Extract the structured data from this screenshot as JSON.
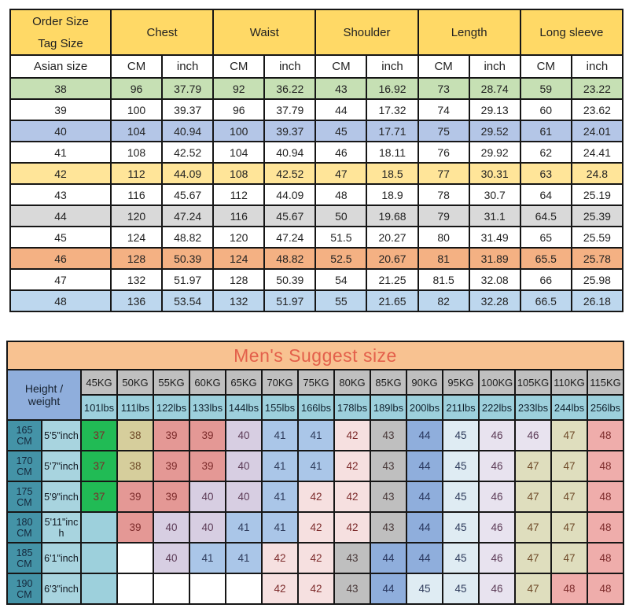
{
  "page": {
    "background": "#FFFFFF"
  },
  "size_table": {
    "corner_line1": "Order Size",
    "corner_line2": "Tag Size",
    "sub_corner": "Asian size",
    "columns": [
      "Chest",
      "Waist",
      "Shoulder",
      "Length",
      "Long sleeve"
    ],
    "sub_headers": [
      "CM",
      "inch"
    ],
    "header_bg": "#FFD966",
    "rows": [
      {
        "size": "38",
        "color": "#C6E0B4",
        "values": [
          "96",
          "37.79",
          "92",
          "36.22",
          "43",
          "16.92",
          "73",
          "28.74",
          "59",
          "23.22"
        ]
      },
      {
        "size": "39",
        "color": "#FFFFFF",
        "values": [
          "100",
          "39.37",
          "96",
          "37.79",
          "44",
          "17.32",
          "74",
          "29.13",
          "60",
          "23.62"
        ]
      },
      {
        "size": "40",
        "color": "#B4C6E7",
        "values": [
          "104",
          "40.94",
          "100",
          "39.37",
          "45",
          "17.71",
          "75",
          "29.52",
          "61",
          "24.01"
        ]
      },
      {
        "size": "41",
        "color": "#FFFFFF",
        "values": [
          "108",
          "42.52",
          "104",
          "40.94",
          "46",
          "18.11",
          "76",
          "29.92",
          "62",
          "24.41"
        ]
      },
      {
        "size": "42",
        "color": "#FFE599",
        "values": [
          "112",
          "44.09",
          "108",
          "42.52",
          "47",
          "18.5",
          "77",
          "30.31",
          "63",
          "24.8"
        ]
      },
      {
        "size": "43",
        "color": "#FFFFFF",
        "values": [
          "116",
          "45.67",
          "112",
          "44.09",
          "48",
          "18.9",
          "78",
          "30.7",
          "64",
          "25.19"
        ]
      },
      {
        "size": "44",
        "color": "#D9D9D9",
        "values": [
          "120",
          "47.24",
          "116",
          "45.67",
          "50",
          "19.68",
          "79",
          "31.1",
          "64.5",
          "25.39"
        ]
      },
      {
        "size": "45",
        "color": "#FFFFFF",
        "values": [
          "124",
          "48.82",
          "120",
          "47.24",
          "51.5",
          "20.27",
          "80",
          "31.49",
          "65",
          "25.59"
        ]
      },
      {
        "size": "46",
        "color": "#F4B183",
        "values": [
          "128",
          "50.39",
          "124",
          "48.82",
          "52.5",
          "20.67",
          "81",
          "31.89",
          "65.5",
          "25.78"
        ]
      },
      {
        "size": "47",
        "color": "#FFFFFF",
        "values": [
          "132",
          "51.97",
          "128",
          "50.39",
          "54",
          "21.25",
          "81.5",
          "32.08",
          "66",
          "25.98"
        ]
      },
      {
        "size": "48",
        "color": "#BDD7EE",
        "values": [
          "136",
          "53.54",
          "132",
          "51.97",
          "55",
          "21.65",
          "82",
          "32.28",
          "66.5",
          "26.18"
        ]
      }
    ]
  },
  "suggest_table": {
    "title": "Men's Suggest size",
    "title_bg": "#F8C291",
    "title_color": "#E3604B",
    "corner_label": "Height / weight",
    "corner_bg": "#8FAEDC",
    "kg_bg": "#BFBFBF",
    "lbs_bg": "#9DD0DC",
    "height_cm_bg": "#4493A7",
    "height_inch_bg": "#A8D4DF",
    "weights": [
      {
        "kg": "45KG",
        "lbs": "101lbs"
      },
      {
        "kg": "50KG",
        "lbs": "111lbs"
      },
      {
        "kg": "55KG",
        "lbs": "122lbs"
      },
      {
        "kg": "60KG",
        "lbs": "133lbs"
      },
      {
        "kg": "65KG",
        "lbs": "144lbs"
      },
      {
        "kg": "70KG",
        "lbs": "155lbs"
      },
      {
        "kg": "75KG",
        "lbs": "166lbs"
      },
      {
        "kg": "80KG",
        "lbs": "178lbs"
      },
      {
        "kg": "85KG",
        "lbs": "189lbs"
      },
      {
        "kg": "90KG",
        "lbs": "200lbs"
      },
      {
        "kg": "95KG",
        "lbs": "211lbs"
      },
      {
        "kg": "100KG",
        "lbs": "222lbs"
      },
      {
        "kg": "105KG",
        "lbs": "233lbs"
      },
      {
        "kg": "110KG",
        "lbs": "244lbs"
      },
      {
        "kg": "115KG",
        "lbs": "256lbs"
      }
    ],
    "rows": [
      {
        "cm": "165 CM",
        "inch": "5'5\"inch",
        "cells": [
          "37",
          "38",
          "39",
          "39",
          "40",
          "41",
          "41",
          "42",
          "43",
          "44",
          "45",
          "46",
          "46",
          "47",
          "48"
        ]
      },
      {
        "cm": "170 CM",
        "inch": "5'7\"inch",
        "cells": [
          "37",
          "38",
          "39",
          "39",
          "40",
          "41",
          "41",
          "42",
          "43",
          "44",
          "45",
          "46",
          "47",
          "47",
          "48"
        ]
      },
      {
        "cm": "175 CM",
        "inch": "5'9\"inch",
        "cells": [
          "37",
          "39",
          "39",
          "40",
          "40",
          "41",
          "42",
          "42",
          "43",
          "44",
          "45",
          "46",
          "47",
          "47",
          "48"
        ]
      },
      {
        "cm": "180 CM",
        "inch": "5'11\"inch",
        "cells": [
          {
            "v": "",
            "bg": "cyan"
          },
          "39",
          "40",
          "40",
          "41",
          "41",
          "42",
          "42",
          "43",
          "44",
          "45",
          "46",
          "47",
          "47",
          "48"
        ]
      },
      {
        "cm": "185 CM",
        "inch": "6'1\"inch",
        "cells": [
          {
            "v": "",
            "bg": "cyan"
          },
          "",
          "40",
          "41",
          "41",
          "42",
          "42",
          "43",
          "44",
          "44",
          "45",
          "46",
          "47",
          "47",
          "48"
        ]
      },
      {
        "cm": "190 CM",
        "inch": "6'3\"inch",
        "cells": [
          {
            "v": "",
            "bg": "cyan"
          },
          "",
          "",
          "",
          "",
          "42",
          "42",
          "43",
          "44",
          "45",
          "45",
          "46",
          "47",
          "48",
          "48"
        ]
      }
    ],
    "value_colors": {
      "37": {
        "bg": "#21BB55",
        "fg": "#7C2B2B"
      },
      "38": {
        "bg": "#D6CE9C",
        "fg": "#6E4A28"
      },
      "39": {
        "bg": "#E49895",
        "fg": "#7C2B2B"
      },
      "40": {
        "bg": "#D7CEE2",
        "fg": "#5B3A55"
      },
      "41": {
        "bg": "#AAC6E8",
        "fg": "#2F3C5C"
      },
      "42": {
        "bg": "#F6E0E0",
        "fg": "#7C2B2B"
      },
      "43": {
        "bg": "#BFBFBF",
        "fg": "#4A3A3A"
      },
      "44": {
        "bg": "#8FAEDC",
        "fg": "#27355C"
      },
      "45": {
        "bg": "#DFECF3",
        "fg": "#2F3C5C"
      },
      "46": {
        "bg": "#E8E3EF",
        "fg": "#5B3A55"
      },
      "47": {
        "bg": "#DFDEBE",
        "fg": "#6E4A28"
      },
      "48": {
        "bg": "#EFADAB",
        "fg": "#7C2B2B"
      },
      "cyan": {
        "bg": "#9DD0DC",
        "fg": "#000000"
      },
      "": {
        "bg": "#FFFFFF",
        "fg": "#000000"
      }
    }
  }
}
